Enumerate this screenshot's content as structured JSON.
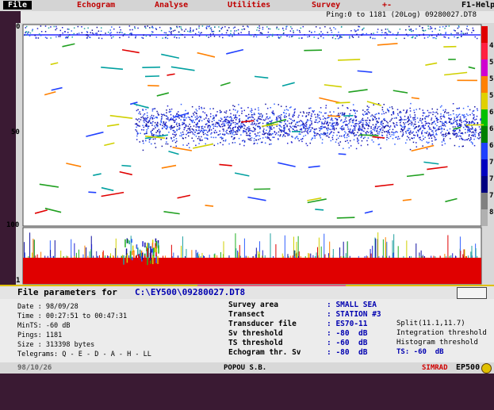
{
  "menu": [
    "File",
    "Echogram",
    "Analyse",
    "Utilities",
    "Survey",
    "+-",
    "F1-Help"
  ],
  "echogram": {
    "header": "Ping:0 to 1181 (20Log) 09280027.DT8",
    "depth_labels": [
      "0",
      "50",
      "100"
    ],
    "lower_label": "1",
    "scale_labels": [
      "4",
      "5",
      "5",
      "5",
      "6",
      "6",
      "6",
      "7",
      "7",
      "7",
      "8"
    ]
  },
  "file_parameters": {
    "title": "File parameters for",
    "path": "C:\\EY500\\09280027.DT8"
  },
  "info_left": [
    "Date : 98/09/28",
    "Time : 00:27:51 to 00:47:31",
    "MinTS: -60 dB",
    "Pings: 1181",
    "Size : 313398 bytes",
    "Telegrams: Q - E - D - A - H - LL"
  ],
  "info_fields": [
    {
      "label": "Survey area",
      "value": ": SMALL SEA"
    },
    {
      "label": "Transect",
      "value": ": STATION #3"
    },
    {
      "label": "Transducer file",
      "value": ": ES70-11",
      "note": "Split(11.1,11.7)"
    },
    {
      "label": "Sv threshold",
      "value": ": -80  dB",
      "note": "Integration threshold"
    },
    {
      "label": "TS threshold",
      "value": ": -60  dB",
      "note": "Histogram threshold"
    },
    {
      "label": "Echogram thr. Sv",
      "value": ": -80  dB",
      "note": "TS: -60  dB"
    }
  ],
  "footer": {
    "date": "98/10/26",
    "author": "POPOU S.B.",
    "brand": "SIMRAD",
    "product": "EP500"
  }
}
